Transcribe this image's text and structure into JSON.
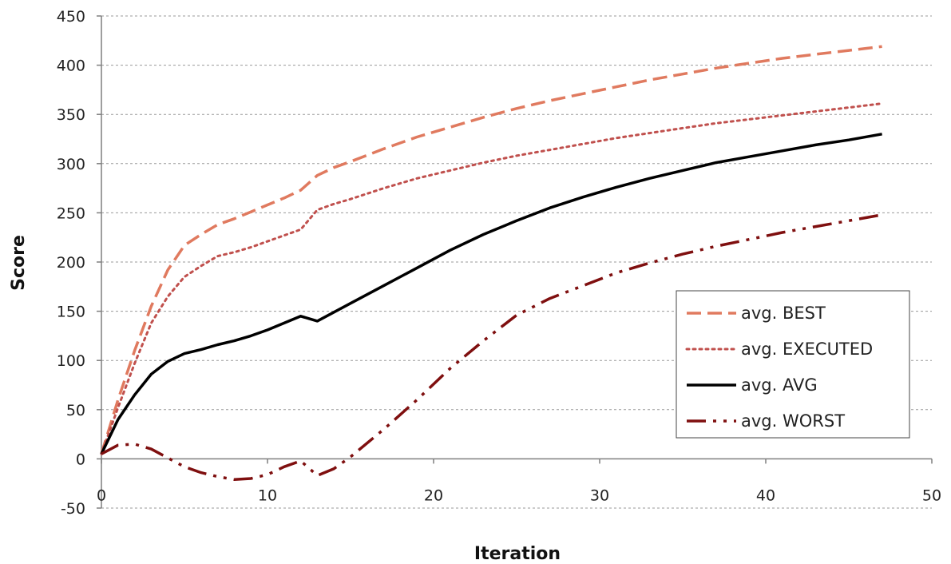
{
  "chart_data": {
    "type": "line",
    "xlabel": "Iteration",
    "ylabel": "Score",
    "xlim": [
      0,
      50
    ],
    "ylim": [
      -50,
      450
    ],
    "xticks": [
      0,
      10,
      20,
      30,
      40,
      50
    ],
    "yticks": [
      -50,
      0,
      50,
      100,
      150,
      200,
      250,
      300,
      350,
      400,
      450
    ],
    "grid": "horizontal dashed",
    "legend_position": "right",
    "series": [
      {
        "name": "avg. BEST",
        "color": "#E07A5F",
        "style": "dashed",
        "x": [
          0,
          1,
          2,
          3,
          4,
          5,
          6,
          7,
          8,
          9,
          10,
          11,
          12,
          13,
          14,
          15,
          17,
          19,
          21,
          23,
          25,
          27,
          29,
          31,
          33,
          35,
          37,
          39,
          41,
          43,
          45,
          47
        ],
        "y": [
          5,
          60,
          110,
          155,
          192,
          217,
          228,
          238,
          244,
          251,
          258,
          265,
          273,
          288,
          296,
          302,
          315,
          327,
          337,
          347,
          356,
          364,
          371,
          378,
          385,
          391,
          397,
          402,
          407,
          411,
          415,
          419
        ]
      },
      {
        "name": "avg. EXECUTED",
        "color": "#C0504D",
        "style": "dotted",
        "x": [
          0,
          1,
          2,
          3,
          4,
          5,
          6,
          7,
          8,
          9,
          10,
          11,
          12,
          13,
          14,
          15,
          17,
          19,
          21,
          23,
          25,
          27,
          29,
          31,
          33,
          35,
          37,
          39,
          41,
          43,
          45,
          47
        ],
        "y": [
          5,
          52,
          97,
          138,
          165,
          185,
          196,
          206,
          210,
          215,
          221,
          227,
          233,
          253,
          259,
          264,
          275,
          285,
          293,
          301,
          308,
          314,
          320,
          326,
          331,
          336,
          341,
          345,
          349,
          353,
          357,
          361
        ]
      },
      {
        "name": "avg. AVG",
        "color": "#000000",
        "style": "solid",
        "x": [
          0,
          1,
          2,
          3,
          4,
          5,
          6,
          7,
          8,
          9,
          10,
          11,
          12,
          13,
          14,
          15,
          17,
          19,
          21,
          23,
          25,
          27,
          29,
          31,
          33,
          35,
          37,
          39,
          41,
          43,
          45,
          47
        ],
        "y": [
          5,
          40,
          65,
          86,
          99,
          107,
          111,
          116,
          120,
          125,
          131,
          138,
          145,
          140,
          149,
          158,
          176,
          194,
          212,
          228,
          242,
          255,
          266,
          276,
          285,
          293,
          301,
          307,
          313,
          319,
          324,
          330
        ]
      },
      {
        "name": "avg. WORST",
        "color": "#7F0F0F",
        "style": "dashdotdot",
        "x": [
          0,
          1,
          2,
          3,
          4,
          5,
          6,
          7,
          8,
          9,
          10,
          11,
          12,
          13,
          14,
          15,
          17,
          19,
          21,
          23,
          25,
          27,
          29,
          31,
          33,
          35,
          37,
          39,
          41,
          43,
          45,
          47
        ],
        "y": [
          5,
          14,
          15,
          10,
          1,
          -8,
          -14,
          -18,
          -21,
          -20,
          -16,
          -8,
          -2,
          -17,
          -10,
          2,
          30,
          60,
          92,
          120,
          146,
          163,
          176,
          189,
          199,
          208,
          216,
          223,
          230,
          236,
          242,
          248
        ]
      }
    ]
  }
}
